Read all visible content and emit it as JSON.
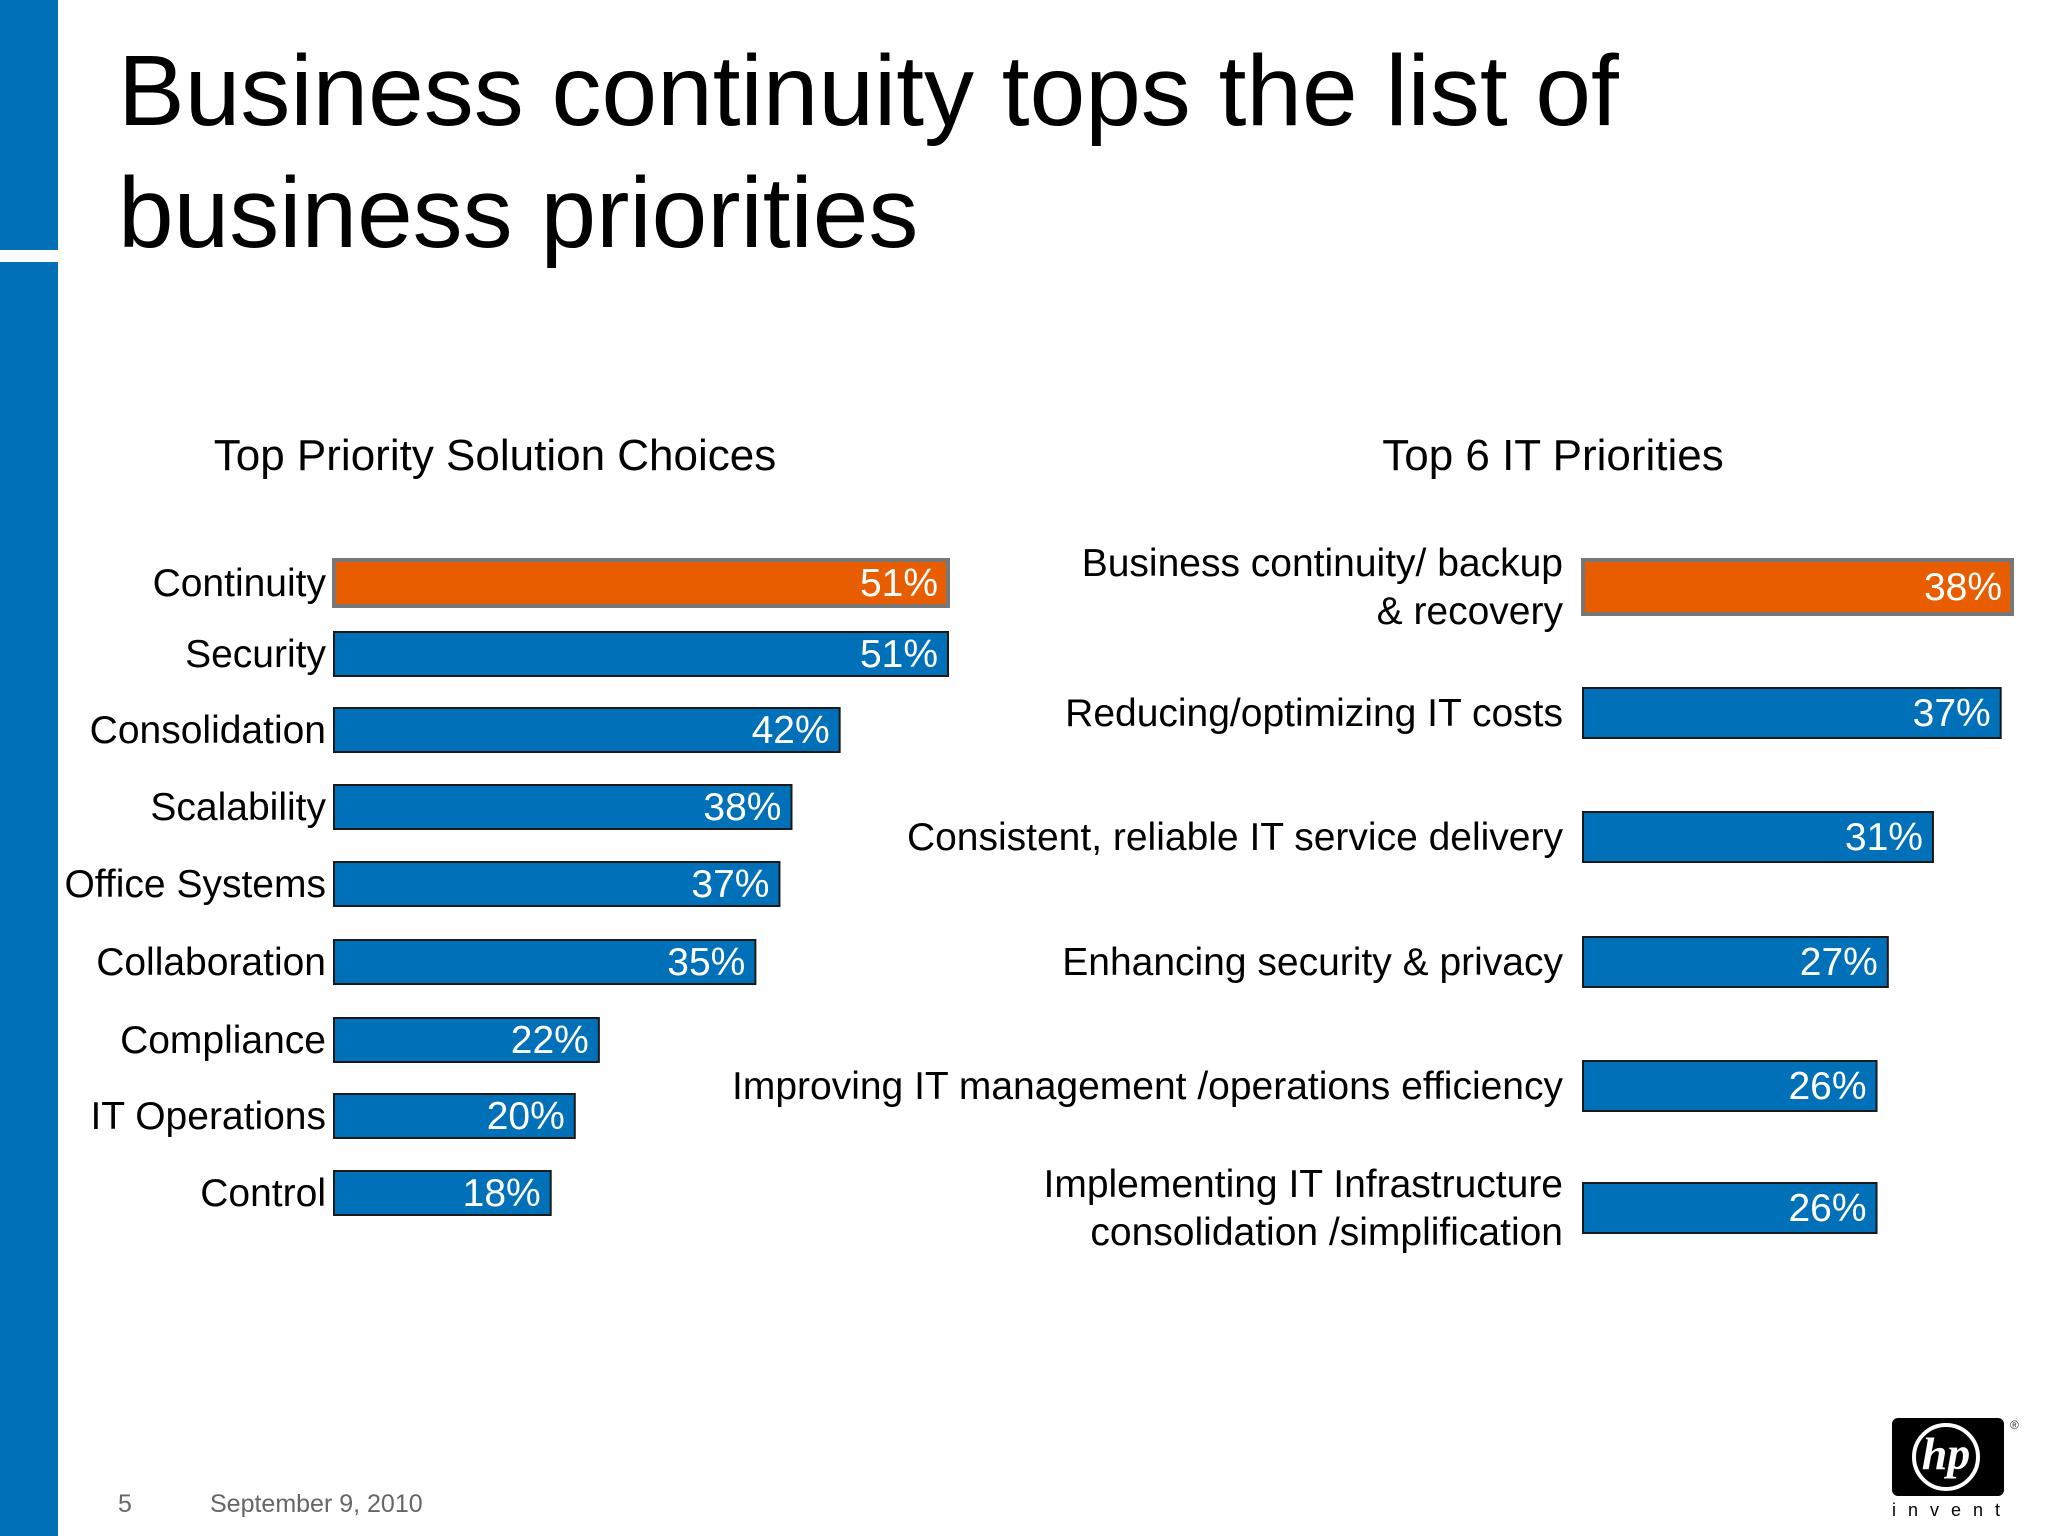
{
  "slide": {
    "title": "Business continuity tops the list of\nbusiness priorities",
    "page_number": "5",
    "date": "September 9, 2010",
    "logo_tagline": "invent",
    "logo_mark": "hp",
    "logo_reg": "®"
  },
  "colors": {
    "brand_blue": "#0071b9",
    "highlight_orange": "#e85d00",
    "bar_border": "#1a1a1a",
    "highlight_border": "#777777"
  },
  "chart_data": [
    {
      "type": "bar",
      "orientation": "horizontal",
      "title": "Top Priority Solution Choices",
      "categories": [
        "Continuity",
        "Security",
        "Consolidation",
        "Scalability",
        "Office Systems",
        "Collaboration",
        "Compliance",
        "IT Operations",
        "Control"
      ],
      "values": [
        51,
        51,
        42,
        38,
        37,
        35,
        22,
        20,
        18
      ],
      "labels": [
        "51%",
        "51%",
        "42%",
        "38%",
        "37%",
        "35%",
        "22%",
        "20%",
        "18%"
      ],
      "unit": "%",
      "highlight_index": 0,
      "xlim": [
        0,
        51
      ],
      "grid": false,
      "legend": "none"
    },
    {
      "type": "bar",
      "orientation": "horizontal",
      "title": "Top 6 IT Priorities",
      "categories": [
        [
          "Business continuity/ backup",
          "& recovery"
        ],
        [
          "Reducing/optimizing IT costs"
        ],
        [
          "Consistent, reliable IT service delivery"
        ],
        [
          "Enhancing security & privacy"
        ],
        [
          "Improving IT management /operations efficiency"
        ],
        [
          "Implementing IT Infrastructure",
          "consolidation /simplification"
        ]
      ],
      "values": [
        38,
        37,
        31,
        27,
        26,
        26
      ],
      "labels": [
        "38%",
        "37%",
        "31%",
        "27%",
        "26%",
        "26%"
      ],
      "unit": "%",
      "highlight_index": 0,
      "xlim": [
        0,
        38
      ],
      "grid": false,
      "legend": "none"
    }
  ]
}
